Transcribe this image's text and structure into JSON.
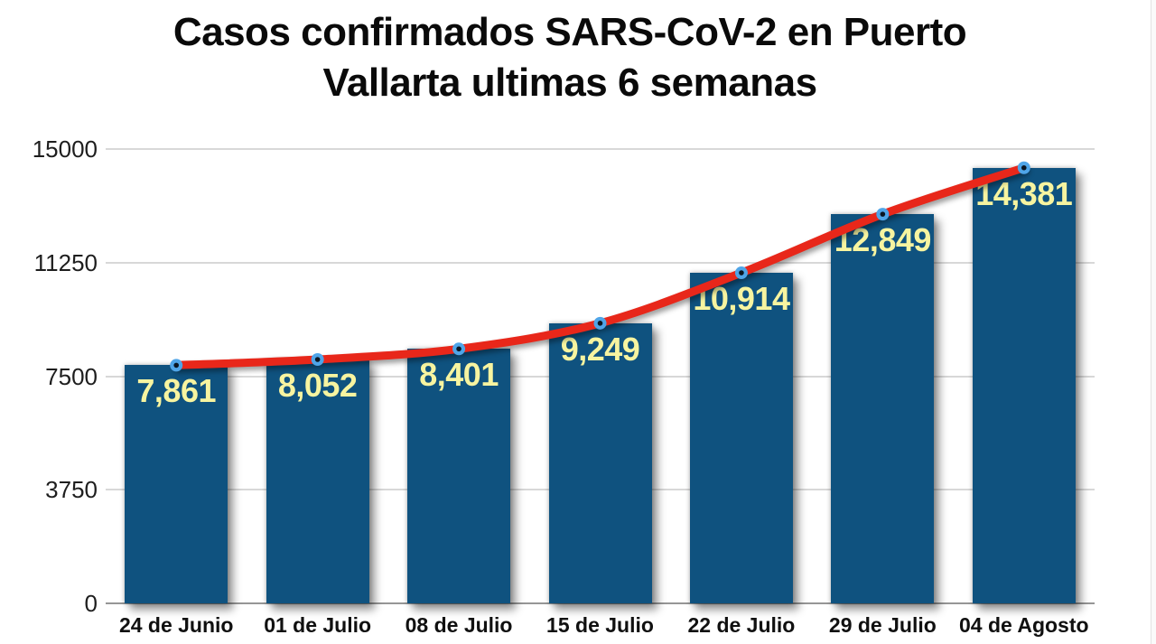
{
  "chart_data": {
    "type": "bar",
    "line_overlay": true,
    "title": "Casos confirmados SARS-CoV-2 en Puerto Vallarta ultimas 6 semanas",
    "title_lines": [
      "Casos confirmados SARS-CoV-2 en Puerto",
      "Vallarta ultimas 6 semanas"
    ],
    "categories": [
      "24 de Junio",
      "01 de Julio",
      "08 de Julio",
      "15 de Julio",
      "22 de Julio",
      "29 de Julio",
      "04 de Agosto"
    ],
    "values": [
      7861,
      8052,
      8401,
      9249,
      10914,
      12849,
      14381
    ],
    "value_labels": [
      "7,861",
      "8,052",
      "8,401",
      "9,249",
      "10,914",
      "12,849",
      "14,381"
    ],
    "xlabel": "",
    "ylabel": "",
    "ylim": [
      0,
      15000
    ],
    "yticks": [
      {
        "value": 15000,
        "label": "15000"
      },
      {
        "value": 11250,
        "label": "11250"
      },
      {
        "value": 7500,
        "label": "7500"
      },
      {
        "value": 3750,
        "label": "3750"
      },
      {
        "value": 0,
        "label": "0"
      }
    ],
    "grid": true,
    "legend": false,
    "colors": {
      "bar": "#0f527f",
      "line": "#e8271a",
      "marker_ring": "#4fa5e8",
      "marker_center": "#0a1622",
      "value_label": "#f7f4a0",
      "gridline": "#d8d8d8",
      "axis_line": "#969696",
      "tick_text": "#1e1e1e",
      "title_text": "#0a0a0a",
      "background": "#ffffff"
    }
  }
}
